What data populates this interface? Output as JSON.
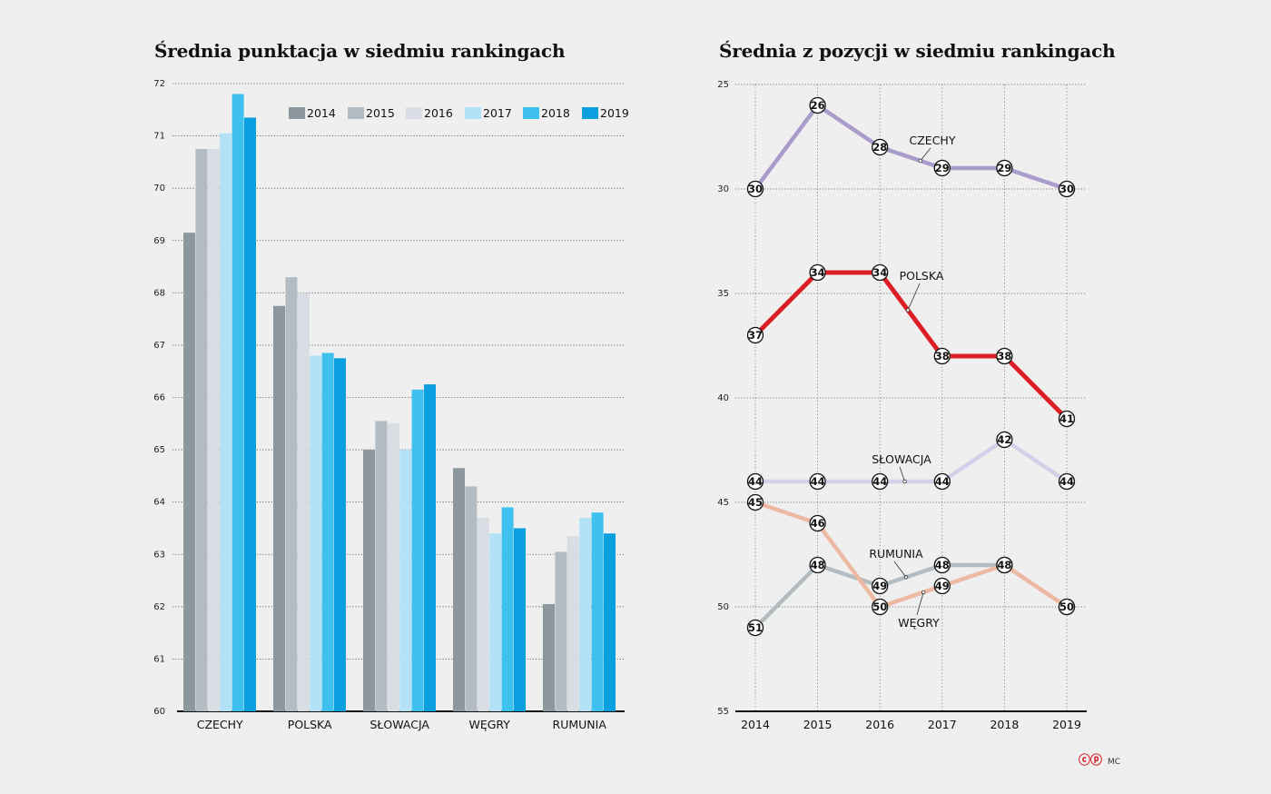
{
  "left": {
    "title": "Średnia punktacja w siedmiu rankingach"
  },
  "right": {
    "title": "Średnia z pozycji w siedmiu rankingach"
  },
  "credit": {
    "logo": "ⓒⓟ",
    "author": "MC"
  },
  "chart_data": [
    {
      "type": "bar",
      "title": "Średnia punktacja w siedmiu rankingach",
      "categories": [
        "CZECHY",
        "POLSKA",
        "SŁOWACJA",
        "WĘGRY",
        "RUMUNIA"
      ],
      "ylim": [
        60,
        72
      ],
      "yticks": [
        60,
        61,
        62,
        63,
        64,
        65,
        66,
        67,
        68,
        69,
        70,
        71,
        72
      ],
      "grid": true,
      "legend_position": "top-right",
      "series": [
        {
          "name": "2014",
          "color": "#8c979e",
          "values": [
            69.15,
            67.75,
            65.0,
            64.65,
            62.05
          ]
        },
        {
          "name": "2015",
          "color": "#b2bcc2",
          "values": [
            70.75,
            68.3,
            65.55,
            64.3,
            63.05
          ]
        },
        {
          "name": "2016",
          "color": "#d7dde2",
          "values": [
            70.75,
            68.0,
            65.5,
            63.7,
            63.35
          ]
        },
        {
          "name": "2017",
          "color": "#b3e2f7",
          "values": [
            71.05,
            66.8,
            65.0,
            63.4,
            63.7
          ]
        },
        {
          "name": "2018",
          "color": "#3ec1ee",
          "values": [
            71.8,
            66.85,
            66.15,
            63.9,
            63.8
          ]
        },
        {
          "name": "2019",
          "color": "#0aa0df",
          "values": [
            71.35,
            66.75,
            66.25,
            63.5,
            63.4
          ]
        }
      ]
    },
    {
      "type": "line",
      "title": "Średnia z pozycji w siedmiu rankingach",
      "x": [
        "2014",
        "2015",
        "2016",
        "2017",
        "2018",
        "2019"
      ],
      "ylim": [
        55,
        25
      ],
      "y_inverted": true,
      "yticks": [
        25,
        30,
        35,
        40,
        45,
        50,
        55
      ],
      "grid": true,
      "series": [
        {
          "name": "CZECHY",
          "color": "#a99ccb",
          "values": [
            30,
            26,
            28,
            29,
            29,
            30
          ]
        },
        {
          "name": "POLSKA",
          "color": "#dc1f26",
          "values": [
            37,
            34,
            34,
            38,
            38,
            41
          ]
        },
        {
          "name": "SŁOWACJA",
          "color": "#d4d0ea",
          "values": [
            44,
            44,
            44,
            44,
            42,
            44
          ]
        },
        {
          "name": "RUMUNIA",
          "color": "#b3bcc1",
          "values": [
            51,
            48,
            49,
            48,
            48,
            50
          ]
        },
        {
          "name": "WĘGRY",
          "color": "#eeb9a3",
          "values": [
            45,
            46,
            50,
            49,
            48,
            50
          ]
        }
      ]
    }
  ]
}
